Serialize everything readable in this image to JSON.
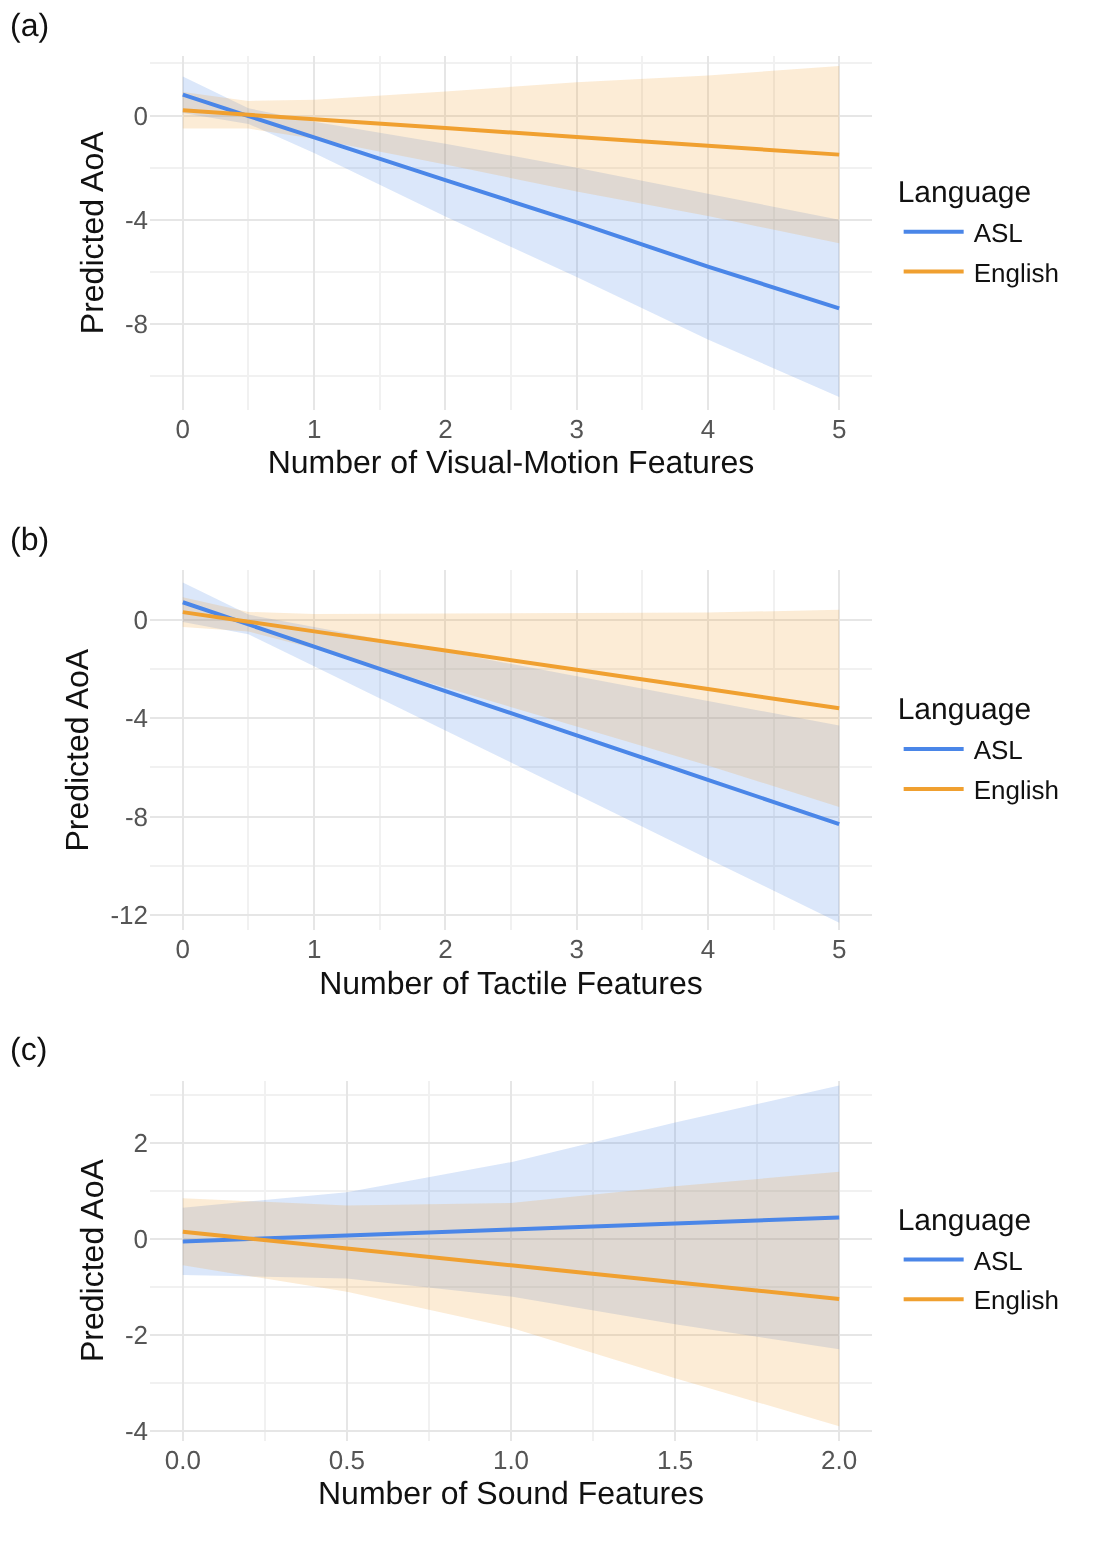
{
  "chart_data": [
    {
      "type": "line",
      "title": "(a)",
      "xlabel": "Number of Visual-Motion Features",
      "ylabel": "Predicted AoA",
      "legend_title": "Language",
      "legend": "right",
      "grid": true,
      "xlim": [
        -0.25,
        5.25
      ],
      "xticks": [
        0,
        1,
        2,
        3,
        4,
        5
      ],
      "ylim": [
        -11.3,
        2.3
      ],
      "yticks": [
        0,
        -4,
        -8
      ],
      "series": [
        {
          "name": "ASL",
          "color": "#4a86e8",
          "x": [
            0,
            0.5,
            1,
            2,
            3,
            4,
            5
          ],
          "values": [
            0.8,
            -0.02,
            -0.84,
            -2.48,
            -4.1,
            -5.8,
            -7.4
          ],
          "lower": [
            0.1,
            -0.32,
            -1.44,
            -3.88,
            -6.2,
            -8.6,
            -10.8
          ],
          "upper": [
            1.5,
            0.28,
            -0.24,
            -1.08,
            -2.0,
            -3.0,
            -4.0
          ]
        },
        {
          "name": "English",
          "color": "#f0a030",
          "x": [
            0,
            0.5,
            1,
            2,
            3,
            4,
            5
          ],
          "values": [
            0.2,
            0.03,
            -0.14,
            -0.48,
            -0.82,
            -1.16,
            -1.5
          ],
          "lower": [
            -0.5,
            -0.5,
            -0.89,
            -1.88,
            -2.92,
            -3.86,
            -4.9
          ],
          "upper": [
            0.9,
            0.56,
            0.61,
            0.92,
            1.28,
            1.54,
            1.9
          ]
        }
      ]
    },
    {
      "type": "line",
      "title": "(b)",
      "xlabel": "Number of Tactile Features",
      "ylabel": "Predicted AoA",
      "legend_title": "Language",
      "legend": "right",
      "grid": true,
      "xlim": [
        -0.25,
        5.25
      ],
      "xticks": [
        0,
        1,
        2,
        3,
        4,
        5
      ],
      "ylim": [
        -12.6,
        2.0
      ],
      "yticks": [
        0,
        -4,
        -8,
        -12
      ],
      "series": [
        {
          "name": "ASL",
          "color": "#4a86e8",
          "x": [
            0,
            0.5,
            1,
            2,
            3,
            4,
            5
          ],
          "values": [
            0.7,
            -0.2,
            -1.1,
            -2.9,
            -4.7,
            -6.5,
            -8.3
          ],
          "lower": [
            -0.1,
            -0.6,
            -1.9,
            -4.5,
            -7.1,
            -9.7,
            -12.3
          ],
          "upper": [
            1.5,
            0.2,
            -0.3,
            -1.3,
            -2.3,
            -3.3,
            -4.3
          ]
        },
        {
          "name": "English",
          "color": "#f0a030",
          "x": [
            0,
            0.5,
            1,
            2,
            3,
            4,
            5
          ],
          "values": [
            0.3,
            -0.09,
            -0.48,
            -1.26,
            -2.04,
            -2.82,
            -3.6
          ],
          "lower": [
            -0.3,
            -0.49,
            -1.18,
            -2.76,
            -4.34,
            -5.92,
            -7.6
          ],
          "upper": [
            0.9,
            0.31,
            0.22,
            0.24,
            0.26,
            0.28,
            0.4
          ]
        }
      ]
    },
    {
      "type": "line",
      "title": "(c)",
      "xlabel": "Number of Sound Features",
      "ylabel": "Predicted AoA",
      "legend_title": "Language",
      "legend": "right",
      "grid": true,
      "xlim": [
        -0.1,
        2.1
      ],
      "xticks": [
        {
          "value": 0,
          "label": "0.0"
        },
        0.5,
        {
          "value": 1,
          "label": "1.0"
        },
        1.5,
        {
          "value": 2,
          "label": "2.0"
        }
      ],
      "ylim": [
        -4.2,
        3.3
      ],
      "yticks": [
        2,
        0,
        -2,
        -4
      ],
      "series": [
        {
          "name": "ASL",
          "color": "#4a86e8",
          "x": [
            0,
            0.5,
            1,
            1.5,
            2
          ],
          "values": [
            -0.05,
            0.075,
            0.2,
            0.325,
            0.45
          ],
          "lower": [
            -0.75,
            -0.825,
            -1.2,
            -1.775,
            -2.3
          ],
          "upper": [
            0.65,
            0.975,
            1.6,
            2.425,
            3.2
          ]
        },
        {
          "name": "English",
          "color": "#f0a030",
          "x": [
            0,
            0.5,
            1,
            1.5,
            2
          ],
          "values": [
            0.15,
            -0.2,
            -0.55,
            -0.9,
            -1.25
          ],
          "lower": [
            -0.55,
            -1.1,
            -1.85,
            -2.9,
            -3.9
          ],
          "upper": [
            0.85,
            0.7,
            0.75,
            1.1,
            1.4
          ]
        }
      ]
    }
  ]
}
